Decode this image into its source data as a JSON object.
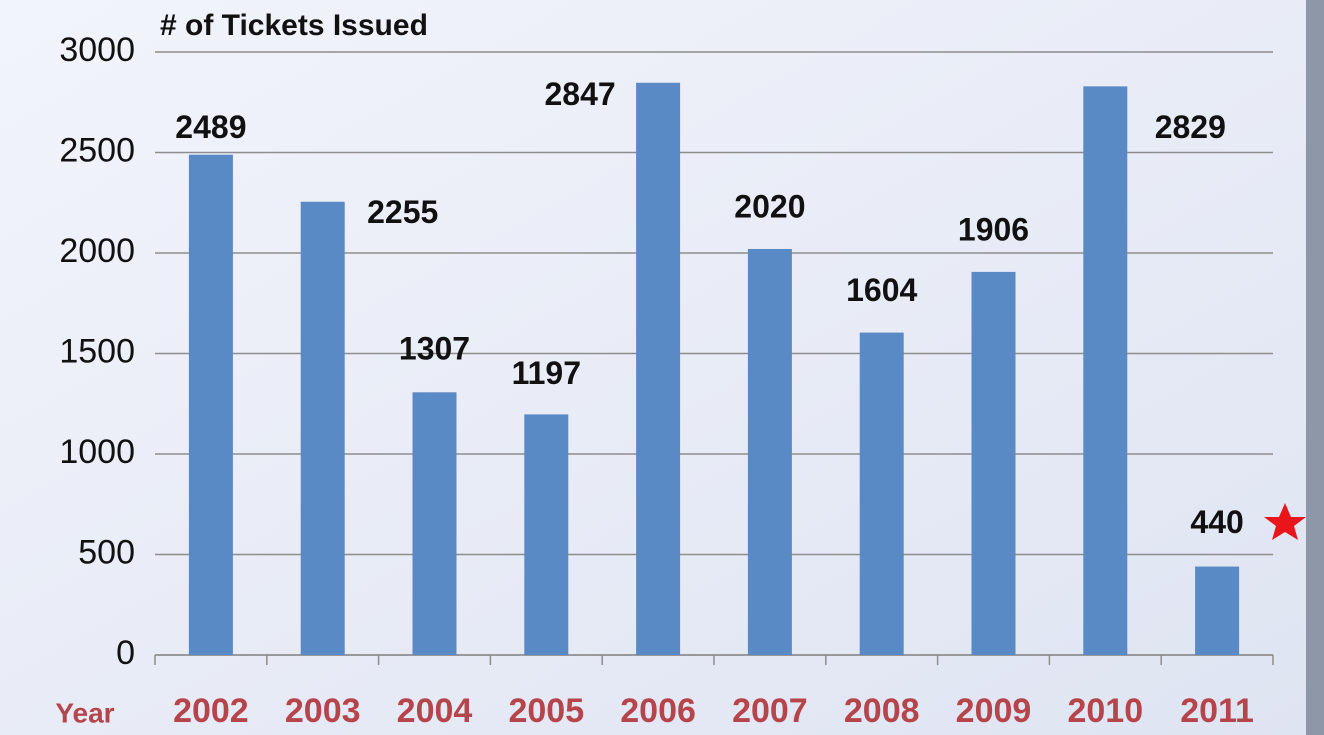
{
  "chart_data": {
    "type": "bar",
    "title": "# of Tickets Issued",
    "xlabel": "Year",
    "categories": [
      "2002",
      "2003",
      "2004",
      "2005",
      "2006",
      "2007",
      "2008",
      "2009",
      "2010",
      "2011"
    ],
    "values": [
      2489,
      2255,
      1307,
      1197,
      2847,
      2020,
      1604,
      1906,
      2829,
      440
    ],
    "color": "#5a8ac6",
    "ylim": [
      0,
      3000
    ],
    "yticks": [
      0,
      500,
      1000,
      1500,
      2000,
      2500,
      3000
    ],
    "grid": true
  }
}
